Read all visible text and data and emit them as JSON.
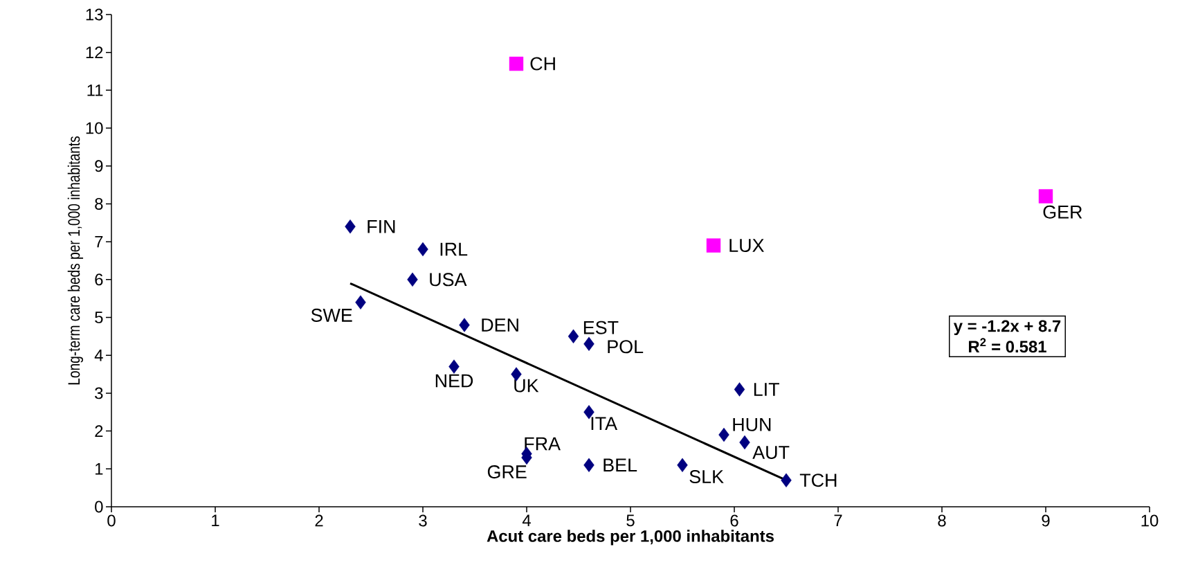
{
  "chart_data": {
    "type": "scatter",
    "xlabel": "Acut care beds per 1,000 inhabitants",
    "ylabel": "Long-term care beds per 1,000 inhabitants",
    "xlim": [
      0,
      10
    ],
    "xticks": [
      0,
      1,
      2,
      3,
      4,
      5,
      6,
      7,
      8,
      9,
      10
    ],
    "ylim": [
      0,
      13
    ],
    "yticks": [
      0,
      1,
      2,
      3,
      4,
      5,
      6,
      7,
      8,
      9,
      10,
      11,
      12,
      13
    ],
    "grid": false,
    "series": [
      {
        "color": "#000080",
        "marker": "diamond",
        "x": [
          2.3,
          3.0,
          2.9,
          2.4,
          3.4,
          4.45,
          4.6,
          3.3,
          3.9,
          6.05,
          4.6,
          5.9,
          6.1,
          4.0,
          4.0,
          4.6,
          5.5,
          6.5
        ],
        "values": [
          7.4,
          6.8,
          6.0,
          5.4,
          4.8,
          4.5,
          4.3,
          3.7,
          3.5,
          3.1,
          2.5,
          1.9,
          1.7,
          1.4,
          1.3,
          1.1,
          1.1,
          0.7
        ]
      },
      {
        "color": "#ff00ff",
        "marker": "square",
        "x": [
          3.9,
          5.8,
          9.0
        ],
        "values": [
          11.7,
          6.9,
          8.2
        ]
      },
      {
        "type": "line",
        "color": "#000000",
        "marker": "none",
        "x": [
          2.3,
          6.5
        ],
        "values": [
          5.9,
          0.7
        ]
      }
    ],
    "annotations": [
      {
        "text": "FIN",
        "x": 2.3,
        "y": 7.4
      },
      {
        "text": "IRL",
        "x": 3.0,
        "y": 6.8
      },
      {
        "text": "USA",
        "x": 2.9,
        "y": 6.0
      },
      {
        "text": "SWE",
        "x": 2.4,
        "y": 5.4
      },
      {
        "text": "DEN",
        "x": 3.4,
        "y": 4.8
      },
      {
        "text": "EST",
        "x": 4.45,
        "y": 4.5
      },
      {
        "text": "POL",
        "x": 4.6,
        "y": 4.3
      },
      {
        "text": "NED",
        "x": 3.3,
        "y": 3.7
      },
      {
        "text": "UK",
        "x": 3.9,
        "y": 3.5
      },
      {
        "text": "LIT",
        "x": 6.05,
        "y": 3.1
      },
      {
        "text": "ITA",
        "x": 4.6,
        "y": 2.5
      },
      {
        "text": "HUN",
        "x": 5.9,
        "y": 1.9
      },
      {
        "text": "AUT",
        "x": 6.1,
        "y": 1.7
      },
      {
        "text": "FRA",
        "x": 4.0,
        "y": 1.4
      },
      {
        "text": "GRE",
        "x": 4.0,
        "y": 1.3
      },
      {
        "text": "BEL",
        "x": 4.6,
        "y": 1.1
      },
      {
        "text": "SLK",
        "x": 5.5,
        "y": 1.1
      },
      {
        "text": "TCH",
        "x": 6.5,
        "y": 0.7
      },
      {
        "text": "CH",
        "x": 3.9,
        "y": 11.7
      },
      {
        "text": "LUX",
        "x": 5.8,
        "y": 6.9
      },
      {
        "text": "GER",
        "x": 9.0,
        "y": 8.2
      },
      "y = -1.2x + 8.7",
      "R$^{2}$ = 0.581"
    ]
  }
}
